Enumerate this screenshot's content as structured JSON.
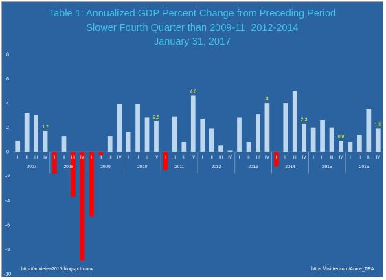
{
  "title_lines": [
    "Table 1: Annualized GDP Percent Change from Preceding Period",
    "Slower Fourth Quarter than 2009-11, 2012-2014",
    "January 31, 2017"
  ],
  "footer": {
    "left": "http://anxietea2016.blogspot.com/",
    "right": "https://twitter.com/Anxie_TEA"
  },
  "colors": {
    "background": "#2a63a0",
    "positive_bar": "#bdd7ee",
    "negative_bar": "#ff0000",
    "title": "#3fc3ee",
    "data_label": "#ffff00",
    "axis_text": "#ffffff",
    "divider": "#88a2c4"
  },
  "chart_data": {
    "type": "bar",
    "title": "Table 1: Annualized GDP Percent Change from Preceding Period",
    "subtitle": "Slower Fourth Quarter than 2009-11, 2012-2014",
    "date": "January 31, 2017",
    "ylim": [
      -10,
      8
    ],
    "y_ticks": [
      -10,
      -8,
      -6,
      -4,
      -2,
      0,
      2,
      4,
      6,
      8
    ],
    "grid": false,
    "legend": "none",
    "groups": [
      {
        "label": "2007",
        "quarters": [
          "I",
          "II",
          "III",
          "IV"
        ],
        "values": [
          0.9,
          3.2,
          3.0,
          1.7
        ]
      },
      {
        "label": "2008",
        "quarters": [
          "I",
          "II",
          "III",
          "IV"
        ],
        "values": [
          -1.8,
          1.3,
          -3.7,
          -8.9
        ]
      },
      {
        "label": "2009",
        "quarters": [
          "I",
          "II",
          "III",
          "IV"
        ],
        "values": [
          -5.3,
          -0.3,
          1.3,
          3.9
        ]
      },
      {
        "label": "2010",
        "quarters": [
          "I",
          "II",
          "III",
          "IV"
        ],
        "values": [
          1.6,
          3.9,
          2.8,
          2.5
        ]
      },
      {
        "label": "2011",
        "quarters": [
          "I",
          "II",
          "III",
          "IV"
        ],
        "values": [
          -1.5,
          2.9,
          0.8,
          4.6
        ]
      },
      {
        "label": "2012",
        "quarters": [
          "I",
          "II",
          "III",
          "IV"
        ],
        "values": [
          2.7,
          1.9,
          0.5,
          0.1
        ]
      },
      {
        "label": "2013",
        "quarters": [
          "I",
          "II",
          "III",
          "IV"
        ],
        "values": [
          2.8,
          0.8,
          3.1,
          4.0
        ]
      },
      {
        "label": "2014",
        "quarters": [
          "I",
          "II",
          "III",
          "IV"
        ],
        "values": [
          -1.2,
          4.0,
          5.0,
          2.3
        ]
      },
      {
        "label": "2015",
        "quarters": [
          "I",
          "II",
          "III",
          "IV"
        ],
        "values": [
          2.0,
          2.6,
          2.0,
          0.9
        ]
      },
      {
        "label": "2015",
        "quarters": [
          "I",
          "II",
          "III",
          "IV"
        ],
        "values": [
          0.8,
          1.4,
          3.5,
          1.9
        ]
      }
    ],
    "data_labels": [
      {
        "group": 0,
        "quarter": 3,
        "text": "1.7"
      },
      {
        "group": 3,
        "quarter": 3,
        "text": "2.5"
      },
      {
        "group": 4,
        "quarter": 3,
        "text": "4.6"
      },
      {
        "group": 6,
        "quarter": 3,
        "text": "4"
      },
      {
        "group": 7,
        "quarter": 3,
        "text": "2.3"
      },
      {
        "group": 8,
        "quarter": 3,
        "text": "0.9"
      },
      {
        "group": 9,
        "quarter": 3,
        "text": "1.9"
      }
    ]
  }
}
